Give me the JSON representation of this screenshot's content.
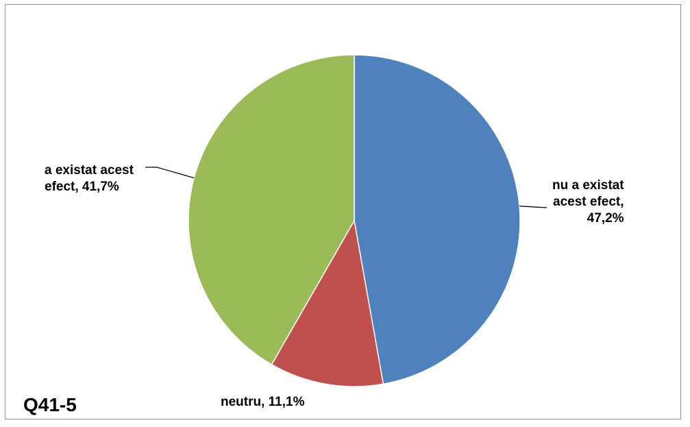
{
  "panel_label": "Q41-5",
  "chart_data": {
    "type": "pie",
    "slices": [
      {
        "name": "nu a existat acest efect",
        "label_lines": [
          "nu a existat",
          "acest efect,",
          "47,2%"
        ],
        "value": 47.2,
        "color": "#4F81BD"
      },
      {
        "name": "neutru",
        "label_lines": [
          "neutru,  11,1%"
        ],
        "value": 11.1,
        "color": "#C0504D"
      },
      {
        "name": "a existat acest efect",
        "label_lines": [
          "a existat acest",
          "efect,   41,7%"
        ],
        "value": 41.7,
        "color": "#9BBB59"
      }
    ],
    "start_angle": "12 o'clock",
    "direction": "clockwise",
    "legend": "none"
  }
}
